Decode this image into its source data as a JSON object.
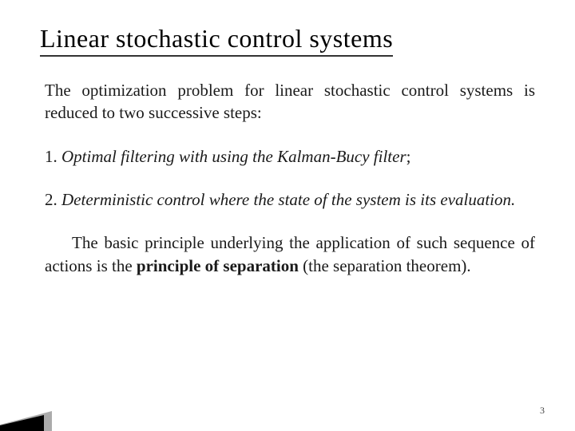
{
  "title": "Linear stochastic control systems",
  "intro": "The optimization problem for linear stochastic control systems is reduced to two successive steps:",
  "step1_num": "1. ",
  "step1_text": "Optimal filtering with using the Kalman-Bucy filter",
  "step1_end": ";",
  "step2_num": "2. ",
  "step2_text": "Deterministic control where the state of the system is its evaluation.",
  "summary_part1": "The basic principle underlying the application of such  sequence of actions is the ",
  "summary_bold1": "principle of separation",
  "summary_part2": " (the separation theorem).",
  "page_number": "3",
  "colors": {
    "background": "#ffffff",
    "text": "#1a1a1a",
    "title_underline": "#333333",
    "accent_dark": "#000000",
    "accent_grey": "#888888"
  },
  "typography": {
    "title_fontsize": 32,
    "body_fontsize": 21,
    "page_num_fontsize": 12,
    "font_family": "Georgia"
  }
}
